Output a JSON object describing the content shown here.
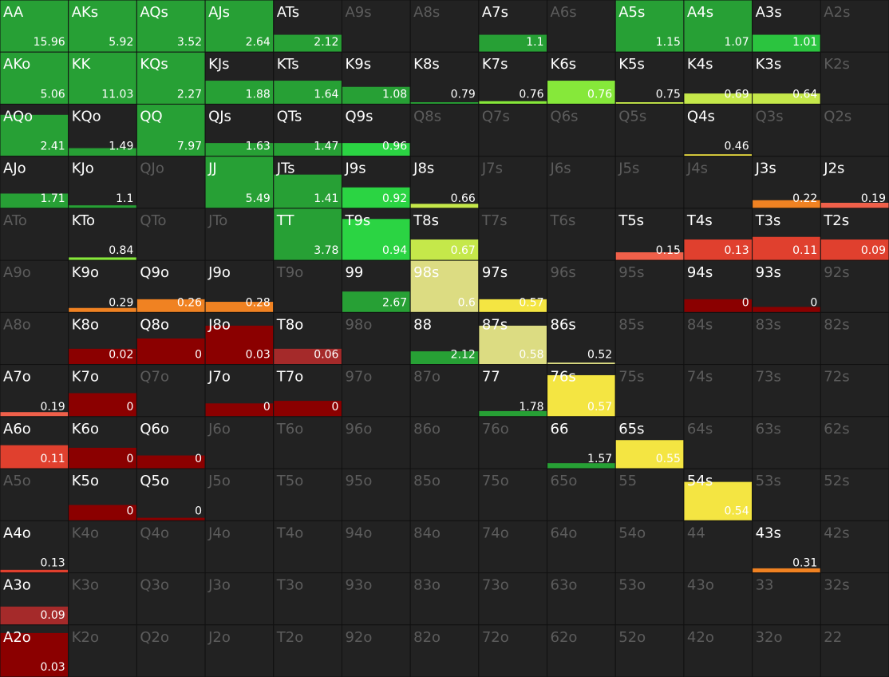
{
  "grid": {
    "rows": [
      [
        {
          "label": "AA",
          "value": 15.96,
          "freq": 100,
          "color": "#27a035"
        },
        {
          "label": "AKs",
          "value": 5.92,
          "freq": 100,
          "color": "#27a035"
        },
        {
          "label": "AQs",
          "value": 3.52,
          "freq": 100,
          "color": "#27a035"
        },
        {
          "label": "AJs",
          "value": 2.64,
          "freq": 100,
          "color": "#27a035"
        },
        {
          "label": "ATs",
          "value": 2.12,
          "freq": 33,
          "color": "#27a035"
        },
        {
          "label": "A9s"
        },
        {
          "label": "A8s"
        },
        {
          "label": "A7s",
          "value": 1.1,
          "freq": 33,
          "color": "#27a035"
        },
        {
          "label": "A6s"
        },
        {
          "label": "A5s",
          "value": 1.15,
          "freq": 100,
          "color": "#27a035"
        },
        {
          "label": "A4s",
          "value": 1.07,
          "freq": 100,
          "color": "#27a035"
        },
        {
          "label": "A3s",
          "value": 1.01,
          "freq": 33,
          "color": "#2bc43f"
        },
        {
          "label": "A2s"
        }
      ],
      [
        {
          "label": "AKo",
          "value": 5.06,
          "freq": 100,
          "color": "#27a035"
        },
        {
          "label": "KK",
          "value": 11.03,
          "freq": 100,
          "color": "#27a035"
        },
        {
          "label": "KQs",
          "value": 2.27,
          "freq": 100,
          "color": "#27a035"
        },
        {
          "label": "KJs",
          "value": 1.88,
          "freq": 45,
          "color": "#27a035"
        },
        {
          "label": "KTs",
          "value": 1.64,
          "freq": 45,
          "color": "#27a035"
        },
        {
          "label": "K9s",
          "value": 1.08,
          "freq": 33,
          "color": "#27a035"
        },
        {
          "label": "K8s",
          "value": 0.79,
          "freq": 3,
          "color": "#27a035"
        },
        {
          "label": "K7s",
          "value": 0.76,
          "freq": 5,
          "color": "#86e83a"
        },
        {
          "label": "K6s",
          "value": 0.76,
          "freq": 45,
          "color": "#86e83a"
        },
        {
          "label": "K5s",
          "value": 0.75,
          "freq": 3,
          "color": "#c5e84a"
        },
        {
          "label": "K4s",
          "value": 0.69,
          "freq": 20,
          "color": "#c5e84a"
        },
        {
          "label": "K3s",
          "value": 0.64,
          "freq": 20,
          "color": "#c5e84a"
        },
        {
          "label": "K2s"
        }
      ],
      [
        {
          "label": "AQo",
          "value": 2.41,
          "freq": 80,
          "color": "#27a035"
        },
        {
          "label": "KQo",
          "value": 1.49,
          "freq": 15,
          "color": "#27a035"
        },
        {
          "label": "QQ",
          "value": 7.97,
          "freq": 100,
          "color": "#27a035"
        },
        {
          "label": "QJs",
          "value": 1.63,
          "freq": 25,
          "color": "#27a035"
        },
        {
          "label": "QTs",
          "value": 1.47,
          "freq": 25,
          "color": "#27a035"
        },
        {
          "label": "Q9s",
          "value": 0.96,
          "freq": 25,
          "color": "#2bd443"
        },
        {
          "label": "Q8s"
        },
        {
          "label": "Q7s"
        },
        {
          "label": "Q6s"
        },
        {
          "label": "Q5s"
        },
        {
          "label": "Q4s",
          "value": 0.46,
          "freq": 3,
          "color": "#f4e542"
        },
        {
          "label": "Q3s"
        },
        {
          "label": "Q2s"
        }
      ],
      [
        {
          "label": "AJo",
          "value": 1.71,
          "freq": 28,
          "color": "#27a035"
        },
        {
          "label": "KJo",
          "value": 1.1,
          "freq": 5,
          "color": "#27a035"
        },
        {
          "label": "QJo"
        },
        {
          "label": "JJ",
          "value": 5.49,
          "freq": 100,
          "color": "#27a035"
        },
        {
          "label": "JTs",
          "value": 1.41,
          "freq": 65,
          "color": "#27a035"
        },
        {
          "label": "J9s",
          "value": 0.92,
          "freq": 40,
          "color": "#2bd443"
        },
        {
          "label": "J8s",
          "value": 0.66,
          "freq": 8,
          "color": "#c5e84a"
        },
        {
          "label": "J7s"
        },
        {
          "label": "J6s"
        },
        {
          "label": "J5s"
        },
        {
          "label": "J4s"
        },
        {
          "label": "J3s",
          "value": 0.22,
          "freq": 15,
          "color": "#f08222"
        },
        {
          "label": "J2s",
          "value": 0.19,
          "freq": 10,
          "color": "#f0604a"
        }
      ],
      [
        {
          "label": "ATo"
        },
        {
          "label": "KTo",
          "value": 0.84,
          "freq": 5,
          "color": "#86e83a"
        },
        {
          "label": "QTo"
        },
        {
          "label": "JTo"
        },
        {
          "label": "TT",
          "value": 3.78,
          "freq": 100,
          "color": "#27a035"
        },
        {
          "label": "T9s",
          "value": 0.94,
          "freq": 80,
          "color": "#2bd443"
        },
        {
          "label": "T8s",
          "value": 0.67,
          "freq": 40,
          "color": "#c5e84a"
        },
        {
          "label": "T7s"
        },
        {
          "label": "T6s"
        },
        {
          "label": "T5s",
          "value": 0.15,
          "freq": 15,
          "color": "#f0604a"
        },
        {
          "label": "T4s",
          "value": 0.13,
          "freq": 40,
          "color": "#e0402e"
        },
        {
          "label": "T3s",
          "value": 0.11,
          "freq": 45,
          "color": "#e0402e"
        },
        {
          "label": "T2s",
          "value": 0.09,
          "freq": 40,
          "color": "#e0402e"
        }
      ],
      [
        {
          "label": "A9o"
        },
        {
          "label": "K9o",
          "value": 0.29,
          "freq": 8,
          "color": "#f08222"
        },
        {
          "label": "Q9o",
          "value": 0.26,
          "freq": 25,
          "color": "#f08222"
        },
        {
          "label": "J9o",
          "value": 0.28,
          "freq": 20,
          "color": "#f08222"
        },
        {
          "label": "T9o"
        },
        {
          "label": "99",
          "value": 2.67,
          "freq": 40,
          "color": "#27a035"
        },
        {
          "label": "98s",
          "value": 0.6,
          "freq": 100,
          "color": "#dcdc82"
        },
        {
          "label": "97s",
          "value": 0.57,
          "freq": 25,
          "color": "#f4e542"
        },
        {
          "label": "96s"
        },
        {
          "label": "95s"
        },
        {
          "label": "94s",
          "value": 0,
          "freq": 25,
          "color": "#8b0000"
        },
        {
          "label": "93s",
          "value": 0,
          "freq": 10,
          "color": "#8b0000"
        },
        {
          "label": "92s"
        }
      ],
      [
        {
          "label": "A8o"
        },
        {
          "label": "K8o",
          "value": 0.02,
          "freq": 30,
          "color": "#8b0000"
        },
        {
          "label": "Q8o",
          "value": 0,
          "freq": 50,
          "color": "#8b0000"
        },
        {
          "label": "J8o",
          "value": 0.03,
          "freq": 75,
          "color": "#8b0000"
        },
        {
          "label": "T8o",
          "value": 0.06,
          "freq": 30,
          "color": "#a52a2a"
        },
        {
          "label": "98o"
        },
        {
          "label": "88",
          "value": 2.12,
          "freq": 25,
          "color": "#27a035"
        },
        {
          "label": "87s",
          "value": 0.58,
          "freq": 75,
          "color": "#dcdc82"
        },
        {
          "label": "86s",
          "value": 0.52,
          "freq": 3,
          "color": "#dcdc82"
        },
        {
          "label": "85s"
        },
        {
          "label": "84s"
        },
        {
          "label": "83s"
        },
        {
          "label": "82s"
        }
      ],
      [
        {
          "label": "A7o",
          "value": 0.19,
          "freq": 8,
          "color": "#f0604a"
        },
        {
          "label": "K7o",
          "value": 0,
          "freq": 45,
          "color": "#8b0000"
        },
        {
          "label": "Q7o"
        },
        {
          "label": "J7o",
          "value": 0,
          "freq": 25,
          "color": "#8b0000"
        },
        {
          "label": "T7o",
          "value": 0,
          "freq": 30,
          "color": "#8b0000"
        },
        {
          "label": "97o"
        },
        {
          "label": "87o"
        },
        {
          "label": "77",
          "value": 1.78,
          "freq": 10,
          "color": "#27a035"
        },
        {
          "label": "76s",
          "value": 0.57,
          "freq": 80,
          "color": "#f4e542"
        },
        {
          "label": "75s"
        },
        {
          "label": "74s"
        },
        {
          "label": "73s"
        },
        {
          "label": "72s"
        }
      ],
      [
        {
          "label": "A6o",
          "value": 0.11,
          "freq": 45,
          "color": "#e0402e"
        },
        {
          "label": "K6o",
          "value": 0,
          "freq": 40,
          "color": "#8b0000"
        },
        {
          "label": "Q6o",
          "value": 0,
          "freq": 25,
          "color": "#8b0000"
        },
        {
          "label": "J6o"
        },
        {
          "label": "T6o"
        },
        {
          "label": "96o"
        },
        {
          "label": "86o"
        },
        {
          "label": "76o"
        },
        {
          "label": "66",
          "value": 1.57,
          "freq": 10,
          "color": "#27a035"
        },
        {
          "label": "65s",
          "value": 0.55,
          "freq": 55,
          "color": "#f4e542"
        },
        {
          "label": "64s"
        },
        {
          "label": "63s"
        },
        {
          "label": "62s"
        }
      ],
      [
        {
          "label": "A5o"
        },
        {
          "label": "K5o",
          "value": 0,
          "freq": 30,
          "color": "#8b0000"
        },
        {
          "label": "Q5o",
          "value": 0,
          "freq": 5,
          "color": "#8b0000"
        },
        {
          "label": "J5o"
        },
        {
          "label": "T5o"
        },
        {
          "label": "95o"
        },
        {
          "label": "85o"
        },
        {
          "label": "75o"
        },
        {
          "label": "65o"
        },
        {
          "label": "55"
        },
        {
          "label": "54s",
          "value": 0.54,
          "freq": 75,
          "color": "#f4e542"
        },
        {
          "label": "53s"
        },
        {
          "label": "52s"
        }
      ],
      [
        {
          "label": "A4o",
          "value": 0.13,
          "freq": 5,
          "color": "#e0402e"
        },
        {
          "label": "K4o"
        },
        {
          "label": "Q4o"
        },
        {
          "label": "J4o"
        },
        {
          "label": "T4o"
        },
        {
          "label": "94o"
        },
        {
          "label": "84o"
        },
        {
          "label": "74o"
        },
        {
          "label": "64o"
        },
        {
          "label": "54o"
        },
        {
          "label": "44"
        },
        {
          "label": "43s",
          "value": 0.31,
          "freq": 8,
          "color": "#f08222"
        },
        {
          "label": "42s"
        }
      ],
      [
        {
          "label": "A3o",
          "value": 0.09,
          "freq": 35,
          "color": "#a52a2a"
        },
        {
          "label": "K3o"
        },
        {
          "label": "Q3o"
        },
        {
          "label": "J3o"
        },
        {
          "label": "T3o"
        },
        {
          "label": "93o"
        },
        {
          "label": "83o"
        },
        {
          "label": "73o"
        },
        {
          "label": "63o"
        },
        {
          "label": "53o"
        },
        {
          "label": "43o"
        },
        {
          "label": "33"
        },
        {
          "label": "32s"
        }
      ],
      [
        {
          "label": "A2o",
          "value": 0.03,
          "freq": 85,
          "color": "#8b0000"
        },
        {
          "label": "K2o"
        },
        {
          "label": "Q2o"
        },
        {
          "label": "J2o"
        },
        {
          "label": "T2o"
        },
        {
          "label": "92o"
        },
        {
          "label": "82o"
        },
        {
          "label": "72o"
        },
        {
          "label": "62o"
        },
        {
          "label": "52o"
        },
        {
          "label": "42o"
        },
        {
          "label": "32o"
        },
        {
          "label": "22"
        }
      ]
    ]
  }
}
